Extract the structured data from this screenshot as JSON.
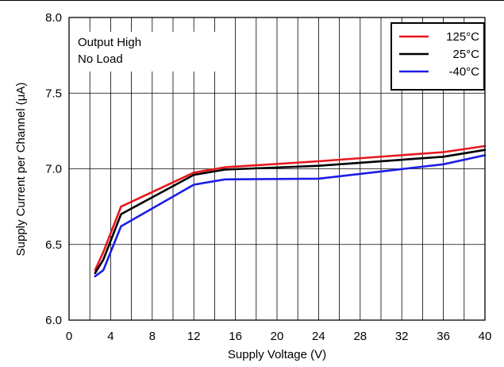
{
  "chart_data": {
    "type": "line",
    "title": "",
    "xlabel": "Supply Voltage (V)",
    "ylabel": "Supply Current per Channel (μA)",
    "xlim": [
      0,
      40
    ],
    "ylim": [
      6.0,
      8.0
    ],
    "x_ticks": [
      "0",
      "4",
      "8",
      "12",
      "16",
      "20",
      "24",
      "28",
      "32",
      "36",
      "40"
    ],
    "y_ticks": [
      "6.0",
      "6.5",
      "7.0",
      "7.5",
      "8.0"
    ],
    "x_tick_values": [
      0,
      4,
      8,
      12,
      16,
      20,
      24,
      28,
      32,
      36,
      40
    ],
    "y_tick_values": [
      6.0,
      6.5,
      7.0,
      7.5,
      8.0
    ],
    "x_grid_values": [
      0,
      2,
      4,
      6,
      8,
      10,
      12,
      14,
      16,
      18,
      20,
      22,
      24,
      26,
      28,
      30,
      32,
      34,
      36,
      38,
      40
    ],
    "y_grid_values": [
      6.0,
      6.5,
      7.0,
      7.5,
      8.0
    ],
    "grid": true,
    "legend_position": "top-right",
    "annotation": [
      "Output High",
      "No Load"
    ],
    "series": [
      {
        "name": "125°C",
        "color": "#e8161b",
        "x": [
          2.5,
          3.3,
          5,
          12,
          15,
          24,
          36,
          40
        ],
        "y": [
          6.33,
          6.45,
          6.75,
          6.975,
          7.01,
          7.05,
          7.11,
          7.15
        ]
      },
      {
        "name": "25°C",
        "color": "#000000",
        "x": [
          2.5,
          3.3,
          5,
          12,
          15,
          24,
          36,
          40
        ],
        "y": [
          6.31,
          6.4,
          6.7,
          6.96,
          6.995,
          7.02,
          7.08,
          7.125
        ]
      },
      {
        "name": "-40°C",
        "color": "#1c1ce6",
        "x": [
          2.5,
          3.3,
          5,
          12,
          15,
          24,
          36,
          40
        ],
        "y": [
          6.29,
          6.33,
          6.62,
          6.895,
          6.93,
          6.935,
          7.03,
          7.09
        ]
      }
    ]
  }
}
